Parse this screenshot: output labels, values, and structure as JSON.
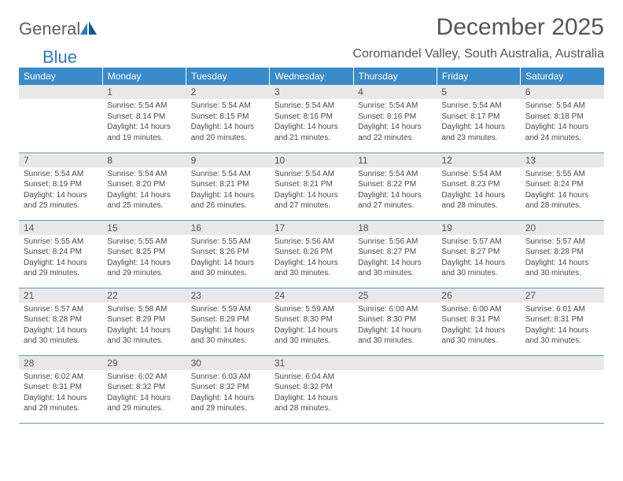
{
  "brand": {
    "part1": "General",
    "part2": "Blue"
  },
  "title": "December 2025",
  "location": "Coromandel Valley, South Australia, Australia",
  "weekdays": [
    "Sunday",
    "Monday",
    "Tuesday",
    "Wednesday",
    "Thursday",
    "Friday",
    "Saturday"
  ],
  "colors": {
    "header_bg": "#3a8bca",
    "header_text": "#ffffff",
    "daynum_bg": "#e8e8e8",
    "body_text": "#4a4a4a",
    "rule": "#6699bb"
  },
  "weeks": [
    [
      {
        "empty": true
      },
      {
        "n": "1",
        "sunrise": "5:54 AM",
        "sunset": "8:14 PM",
        "daylight": "14 hours and 19 minutes."
      },
      {
        "n": "2",
        "sunrise": "5:54 AM",
        "sunset": "8:15 PM",
        "daylight": "14 hours and 20 minutes."
      },
      {
        "n": "3",
        "sunrise": "5:54 AM",
        "sunset": "8:16 PM",
        "daylight": "14 hours and 21 minutes."
      },
      {
        "n": "4",
        "sunrise": "5:54 AM",
        "sunset": "8:16 PM",
        "daylight": "14 hours and 22 minutes."
      },
      {
        "n": "5",
        "sunrise": "5:54 AM",
        "sunset": "8:17 PM",
        "daylight": "14 hours and 23 minutes."
      },
      {
        "n": "6",
        "sunrise": "5:54 AM",
        "sunset": "8:18 PM",
        "daylight": "14 hours and 24 minutes."
      }
    ],
    [
      {
        "n": "7",
        "sunrise": "5:54 AM",
        "sunset": "8:19 PM",
        "daylight": "14 hours and 25 minutes."
      },
      {
        "n": "8",
        "sunrise": "5:54 AM",
        "sunset": "8:20 PM",
        "daylight": "14 hours and 25 minutes."
      },
      {
        "n": "9",
        "sunrise": "5:54 AM",
        "sunset": "8:21 PM",
        "daylight": "14 hours and 26 minutes."
      },
      {
        "n": "10",
        "sunrise": "5:54 AM",
        "sunset": "8:21 PM",
        "daylight": "14 hours and 27 minutes."
      },
      {
        "n": "11",
        "sunrise": "5:54 AM",
        "sunset": "8:22 PM",
        "daylight": "14 hours and 27 minutes."
      },
      {
        "n": "12",
        "sunrise": "5:54 AM",
        "sunset": "8:23 PM",
        "daylight": "14 hours and 28 minutes."
      },
      {
        "n": "13",
        "sunrise": "5:55 AM",
        "sunset": "8:24 PM",
        "daylight": "14 hours and 28 minutes."
      }
    ],
    [
      {
        "n": "14",
        "sunrise": "5:55 AM",
        "sunset": "8:24 PM",
        "daylight": "14 hours and 29 minutes."
      },
      {
        "n": "15",
        "sunrise": "5:55 AM",
        "sunset": "8:25 PM",
        "daylight": "14 hours and 29 minutes."
      },
      {
        "n": "16",
        "sunrise": "5:55 AM",
        "sunset": "8:26 PM",
        "daylight": "14 hours and 30 minutes."
      },
      {
        "n": "17",
        "sunrise": "5:56 AM",
        "sunset": "8:26 PM",
        "daylight": "14 hours and 30 minutes."
      },
      {
        "n": "18",
        "sunrise": "5:56 AM",
        "sunset": "8:27 PM",
        "daylight": "14 hours and 30 minutes."
      },
      {
        "n": "19",
        "sunrise": "5:57 AM",
        "sunset": "8:27 PM",
        "daylight": "14 hours and 30 minutes."
      },
      {
        "n": "20",
        "sunrise": "5:57 AM",
        "sunset": "8:28 PM",
        "daylight": "14 hours and 30 minutes."
      }
    ],
    [
      {
        "n": "21",
        "sunrise": "5:57 AM",
        "sunset": "8:28 PM",
        "daylight": "14 hours and 30 minutes."
      },
      {
        "n": "22",
        "sunrise": "5:58 AM",
        "sunset": "8:29 PM",
        "daylight": "14 hours and 30 minutes."
      },
      {
        "n": "23",
        "sunrise": "5:59 AM",
        "sunset": "8:29 PM",
        "daylight": "14 hours and 30 minutes."
      },
      {
        "n": "24",
        "sunrise": "5:59 AM",
        "sunset": "8:30 PM",
        "daylight": "14 hours and 30 minutes."
      },
      {
        "n": "25",
        "sunrise": "6:00 AM",
        "sunset": "8:30 PM",
        "daylight": "14 hours and 30 minutes."
      },
      {
        "n": "26",
        "sunrise": "6:00 AM",
        "sunset": "8:31 PM",
        "daylight": "14 hours and 30 minutes."
      },
      {
        "n": "27",
        "sunrise": "6:01 AM",
        "sunset": "8:31 PM",
        "daylight": "14 hours and 30 minutes."
      }
    ],
    [
      {
        "n": "28",
        "sunrise": "6:02 AM",
        "sunset": "8:31 PM",
        "daylight": "14 hours and 29 minutes."
      },
      {
        "n": "29",
        "sunrise": "6:02 AM",
        "sunset": "8:32 PM",
        "daylight": "14 hours and 29 minutes."
      },
      {
        "n": "30",
        "sunrise": "6:03 AM",
        "sunset": "8:32 PM",
        "daylight": "14 hours and 29 minutes."
      },
      {
        "n": "31",
        "sunrise": "6:04 AM",
        "sunset": "8:32 PM",
        "daylight": "14 hours and 28 minutes."
      },
      {
        "empty": true
      },
      {
        "empty": true
      },
      {
        "empty": true
      }
    ]
  ],
  "labels": {
    "sunrise": "Sunrise: ",
    "sunset": "Sunset: ",
    "daylight": "Daylight: "
  }
}
